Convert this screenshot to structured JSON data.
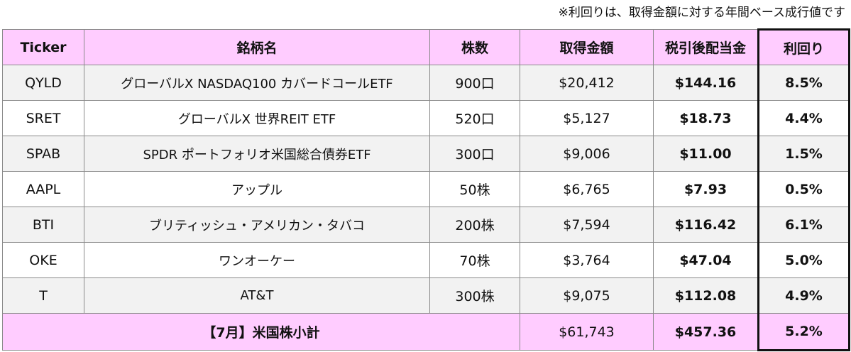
{
  "note": "※利回りは、取得金額に対する年間ベース成行値です",
  "headers": {
    "ticker": "Ticker",
    "name": "銘柄名",
    "shares": "株数",
    "cost": "取得金額",
    "dividend": "税引後配当金",
    "yield": "利回り"
  },
  "rows": [
    {
      "ticker": "QYLD",
      "name": "グローバルX NASDAQ100 カバードコールETF",
      "shares": "900口",
      "cost": "$20,412",
      "dividend": "$144.16",
      "yield": "8.5%"
    },
    {
      "ticker": "SRET",
      "name": "グローバルX 世界REIT ETF",
      "shares": "520口",
      "cost": "$5,127",
      "dividend": "$18.73",
      "yield": "4.4%"
    },
    {
      "ticker": "SPAB",
      "name": "SPDR ポートフォリオ米国総合債券ETF",
      "shares": "300口",
      "cost": "$9,006",
      "dividend": "$11.00",
      "yield": "1.5%"
    },
    {
      "ticker": "AAPL",
      "name": "アップル",
      "shares": "50株",
      "cost": "$6,765",
      "dividend": "$7.93",
      "yield": "0.5%"
    },
    {
      "ticker": "BTI",
      "name": "ブリティッシュ・アメリカン・タバコ",
      "shares": "200株",
      "cost": "$7,594",
      "dividend": "$116.42",
      "yield": "6.1%"
    },
    {
      "ticker": "OKE",
      "name": "ワンオーケー",
      "shares": "70株",
      "cost": "$3,764",
      "dividend": "$47.04",
      "yield": "5.0%"
    },
    {
      "ticker": "T",
      "name": "AT&T",
      "shares": "300株",
      "cost": "$9,075",
      "dividend": "$112.08",
      "yield": "4.9%"
    }
  ],
  "subtotal": {
    "label": "【7月】米国株小計",
    "cost": "$61,743",
    "dividend": "$457.36",
    "yield": "5.2%"
  }
}
